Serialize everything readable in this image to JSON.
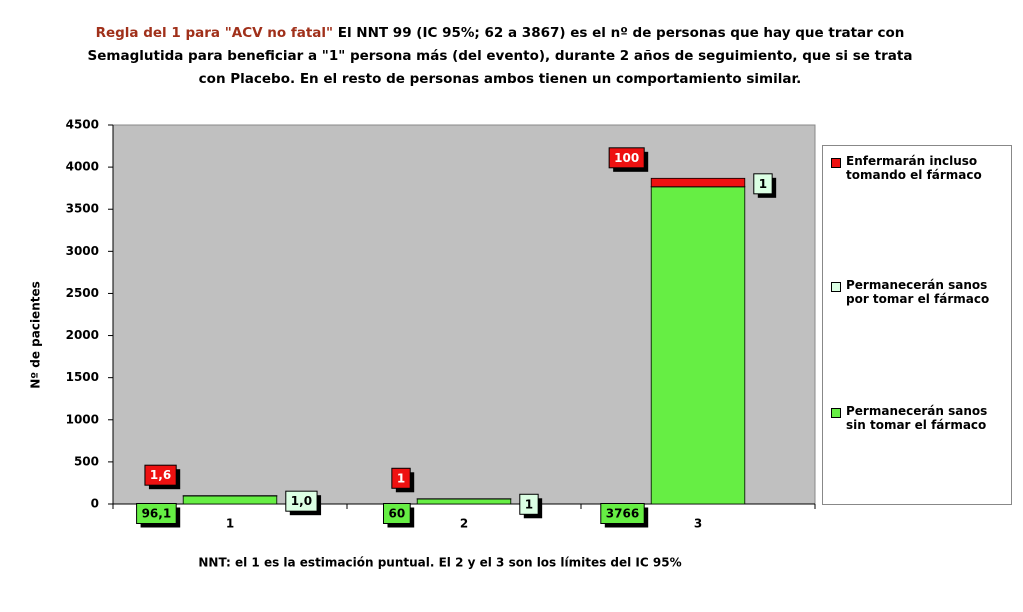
{
  "chart_data": {
    "type": "stacked_bar",
    "title_highlight": "Regla del 1 para \"ACV no fatal\"",
    "title": "El NNT 99 (IC 95%; 62 a 3867) es el nº de personas que hay que tratar con Semaglutida para beneficiar a \"1\" persona más (del evento), durante 2 años de seguimiento, que si se trata con Placebo. En el resto de personas ambos tienen un comportamiento similar.",
    "x_label": "NNT: el 1 es la estimación puntual. El 2 y el 3 son los límites del IC 95%",
    "y_label": "Nº de pacientes",
    "categories": [
      "1",
      "2",
      "3"
    ],
    "series": [
      {
        "name": "Enfermarán incluso tomando el fármaco",
        "color": "#ee1111",
        "label_text_color": "#ffffff",
        "values": [
          1.6,
          1,
          100
        ],
        "value_labels": [
          "1,6",
          "1",
          "100"
        ]
      },
      {
        "name": "Permanecerán sanos por tomar el fármaco",
        "color": "#dcffe4",
        "label_text_color": "#000000",
        "values": [
          1.0,
          1,
          1
        ],
        "value_labels": [
          "1,0",
          "1",
          "1"
        ]
      },
      {
        "name": "Permanecerán sanos sin tomar el fármaco",
        "color": "#66ee44",
        "label_text_color": "#000000",
        "values": [
          96.1,
          60,
          3766
        ],
        "value_labels": [
          "96,1",
          "60",
          "3766"
        ]
      }
    ],
    "ylim": [
      0,
      4500
    ],
    "yticks": [
      0,
      500,
      1000,
      1500,
      2000,
      2500,
      3000,
      3500,
      4000,
      4500
    ],
    "grid": false,
    "legend": "right"
  }
}
